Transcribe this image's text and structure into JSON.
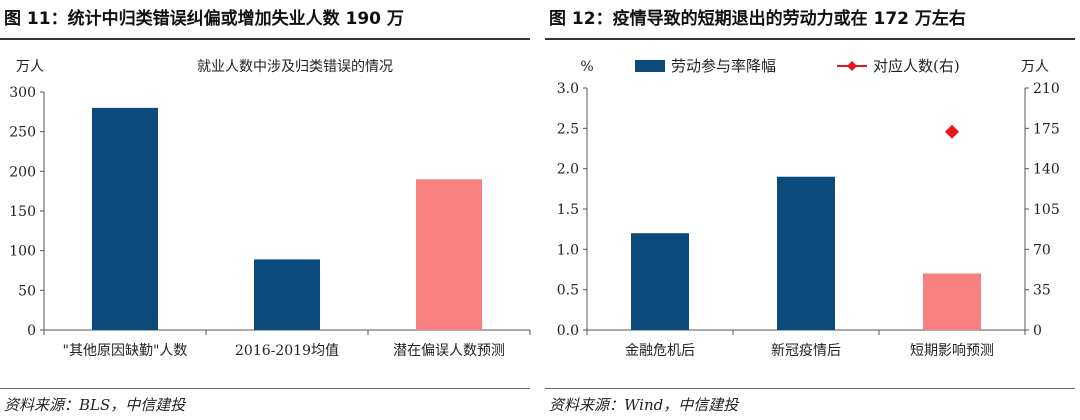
{
  "colors": {
    "bar_primary": "#0b4a7a",
    "bar_highlight": "#f88080",
    "marker": "#e8141c",
    "axis": "#555555"
  },
  "left": {
    "figure_title": "图 11：统计中归类错误纠偏或增加失业人数 190 万",
    "source": "资料来源：BLS，中信建投",
    "chart_data": {
      "type": "bar",
      "title": "就业人数中涉及归类错误的情况",
      "ylabel": "万人",
      "ylim": [
        0,
        300
      ],
      "yticks": [
        "0",
        "50",
        "100",
        "150",
        "200",
        "250",
        "300"
      ],
      "categories": [
        "\"其他原因缺勤\"人数",
        "2016-2019均值",
        "潜在偏误人数预测"
      ],
      "values": [
        280,
        89,
        190
      ],
      "highlight_index": 2
    }
  },
  "right": {
    "figure_title": "图 12：疫情导致的短期退出的劳动力或在 172 万左右",
    "source": "资料来源：Wind，中信建投",
    "chart_data": {
      "type": "bar",
      "ylabel_left": "%",
      "ylabel_right": "万人",
      "ylim_left": [
        0,
        3.0
      ],
      "ylim_right": [
        0,
        210
      ],
      "yticks_left": [
        "0.0",
        "0.5",
        "1.0",
        "1.5",
        "2.0",
        "2.5",
        "3.0"
      ],
      "yticks_right": [
        "0",
        "35",
        "70",
        "105",
        "140",
        "175",
        "210"
      ],
      "categories": [
        "金融危机后",
        "新冠疫情后",
        "短期影响预测"
      ],
      "series": [
        {
          "name": "劳动参与率降幅",
          "axis": "left",
          "values": [
            1.2,
            1.9,
            0.7
          ]
        },
        {
          "name": "对应人数(右)",
          "axis": "right",
          "values": [
            null,
            null,
            172
          ]
        }
      ],
      "highlight_index": 2,
      "legend": "top"
    }
  }
}
